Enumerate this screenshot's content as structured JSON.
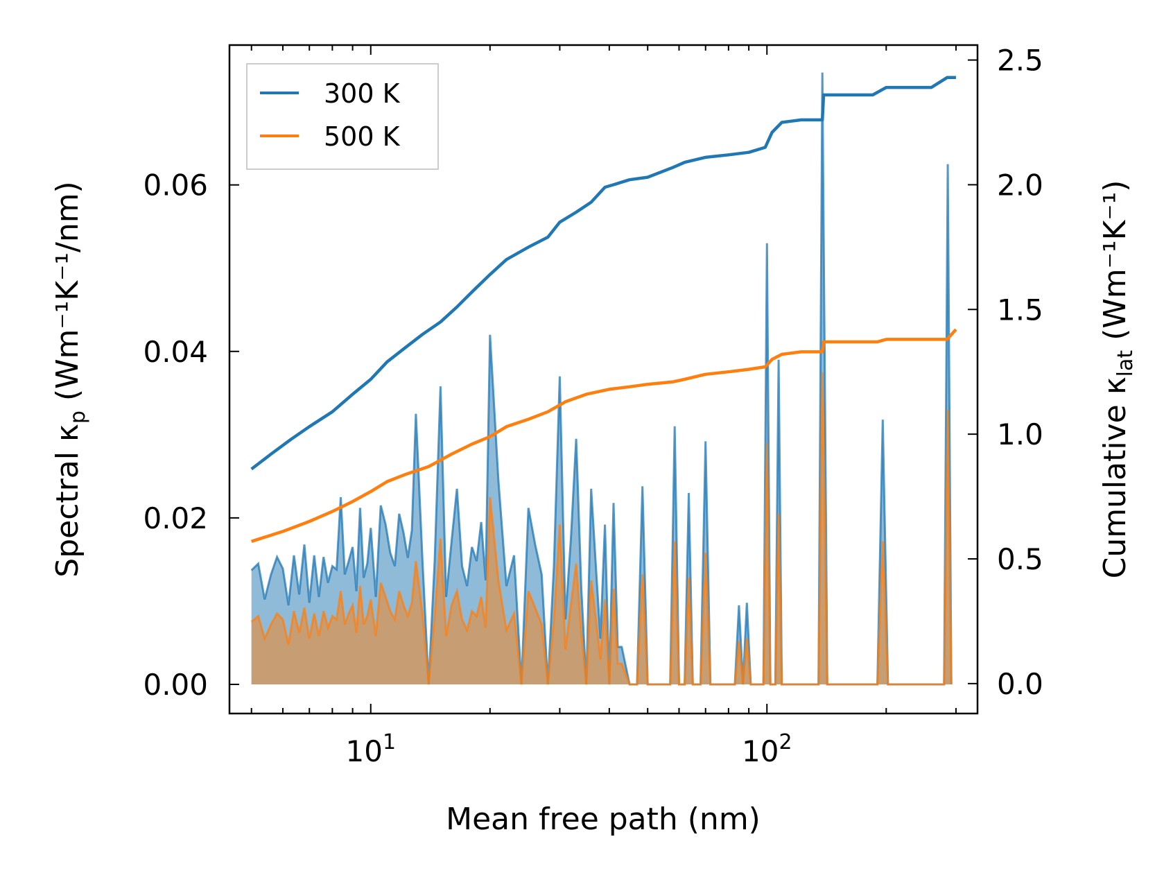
{
  "chart_data": {
    "type": "line",
    "xscale": "log",
    "xlabel": "Mean free path (nm)",
    "ylabel_left": {
      "prefix": "Spectral κ",
      "sub": "p",
      "units": " (Wm⁻¹K⁻¹/nm)"
    },
    "ylabel_right": {
      "prefix": "Cumulative κ",
      "sub": "lat",
      "units": " (Wm⁻¹K⁻¹)"
    },
    "xlim": [
      4.4,
      340
    ],
    "ylim_left": [
      -0.0035,
      0.0768
    ],
    "ylim_right": [
      -0.12,
      2.56
    ],
    "x_tick_labels": [
      {
        "value": 10,
        "base": "10",
        "exp": "1"
      },
      {
        "value": 100,
        "base": "10",
        "exp": "2"
      }
    ],
    "y_left_ticks": [
      0.0,
      0.02,
      0.04,
      0.06
    ],
    "y_left_tick_labels": [
      "0.00",
      "0.02",
      "0.04",
      "0.06"
    ],
    "y_right_ticks": [
      0.0,
      0.5,
      1.0,
      1.5,
      2.0,
      2.5
    ],
    "y_right_tick_labels": [
      "0.0",
      "0.5",
      "1.0",
      "1.5",
      "2.0",
      "2.5"
    ],
    "legend": {
      "position": "top-left",
      "entries": [
        {
          "label": "300 K",
          "color": "#1f77b4"
        },
        {
          "label": "500 K",
          "color": "#ff7f0e"
        }
      ]
    },
    "series": [
      {
        "name": "300 K",
        "axis": "right",
        "kind": "cumulative",
        "color": "#1f77b4",
        "x": [
          5.0,
          5.6,
          6.3,
          7.0,
          8.0,
          9.0,
          10.0,
          11.0,
          12.3,
          13.5,
          15.0,
          16.5,
          18.0,
          20.0,
          22.0,
          25.0,
          28.0,
          30.0,
          33.0,
          36.0,
          39.0,
          41.0,
          45.0,
          50.0,
          58.0,
          62.0,
          70.0,
          80.0,
          90.0,
          99.0,
          103.0,
          109.0,
          122.0,
          138.0,
          139.0,
          155.0,
          185.0,
          200.0,
          260.0,
          285.0,
          300.0
        ],
        "y": [
          0.86,
          0.92,
          0.98,
          1.03,
          1.09,
          1.16,
          1.22,
          1.29,
          1.35,
          1.4,
          1.45,
          1.51,
          1.57,
          1.64,
          1.7,
          1.75,
          1.79,
          1.85,
          1.89,
          1.93,
          1.99,
          2.0,
          2.02,
          2.03,
          2.07,
          2.09,
          2.11,
          2.12,
          2.13,
          2.15,
          2.21,
          2.25,
          2.26,
          2.26,
          2.36,
          2.36,
          2.36,
          2.39,
          2.39,
          2.43,
          2.43
        ]
      },
      {
        "name": "500 K",
        "axis": "right",
        "kind": "cumulative",
        "color": "#ff7f0e",
        "x": [
          5.0,
          6.0,
          7.0,
          8.0,
          9.0,
          10.0,
          11.0,
          12.3,
          14.0,
          16.0,
          18.0,
          20.0,
          22.0,
          25.0,
          28.0,
          31.0,
          35.0,
          40.0,
          45.0,
          50.0,
          58.0,
          62.0,
          70.0,
          80.0,
          90.0,
          99.0,
          103.0,
          109.0,
          122.0,
          138.0,
          139.0,
          190.0,
          200.0,
          285.0,
          300.0
        ],
        "y": [
          0.57,
          0.61,
          0.65,
          0.69,
          0.73,
          0.77,
          0.81,
          0.84,
          0.87,
          0.92,
          0.96,
          0.99,
          1.03,
          1.06,
          1.09,
          1.13,
          1.16,
          1.18,
          1.19,
          1.2,
          1.21,
          1.22,
          1.24,
          1.25,
          1.26,
          1.27,
          1.3,
          1.32,
          1.33,
          1.33,
          1.37,
          1.37,
          1.38,
          1.38,
          1.42
        ]
      },
      {
        "name": "300 K spectral",
        "axis": "left",
        "kind": "spectral",
        "color": "#1f77b4",
        "x": [
          5.0,
          5.2,
          5.4,
          5.6,
          5.8,
          6.0,
          6.2,
          6.4,
          6.6,
          6.8,
          7.0,
          7.2,
          7.4,
          7.6,
          7.8,
          8.0,
          8.2,
          8.4,
          8.6,
          8.8,
          9.0,
          9.2,
          9.4,
          9.6,
          9.8,
          10.0,
          10.3,
          10.6,
          10.9,
          11.2,
          11.5,
          11.8,
          12.1,
          12.4,
          12.7,
          13.0,
          13.5,
          14.0,
          14.5,
          15.0,
          15.5,
          16.0,
          16.5,
          17.0,
          17.5,
          18.0,
          18.5,
          19.0,
          19.5,
          20.0,
          21.0,
          22.0,
          23.0,
          24.0,
          25.0,
          26.0,
          27.0,
          28.0,
          29.0,
          30.0,
          31.0,
          32.0,
          33.0,
          34.0,
          35.0,
          36.0,
          37.0,
          38.0,
          39.0,
          40.0,
          41.0,
          42.0,
          43.0,
          45.0,
          47.0,
          48.5,
          50.0,
          55.0,
          57.0,
          58.5,
          60.0,
          62.0,
          63.5,
          65.0,
          68.0,
          70.0,
          72.0,
          80.0,
          83.0,
          85.0,
          87.0,
          89.0,
          91.0,
          96.0,
          98.0,
          100.0,
          102.0,
          105.0,
          107.0,
          109.0,
          112.0,
          130.0,
          135.0,
          138.0,
          142.0,
          180.0,
          190.0,
          196.0,
          202.0,
          270.0,
          280.0,
          286.0,
          292.0
        ],
        "y": [
          0.0137,
          0.0145,
          0.0102,
          0.0132,
          0.0153,
          0.0139,
          0.0095,
          0.0155,
          0.0108,
          0.0168,
          0.0098,
          0.0155,
          0.0105,
          0.0153,
          0.0122,
          0.0142,
          0.0138,
          0.0225,
          0.0132,
          0.0148,
          0.0165,
          0.0112,
          0.0212,
          0.0128,
          0.0145,
          0.0188,
          0.0105,
          0.0215,
          0.0192,
          0.0158,
          0.0142,
          0.0205,
          0.0182,
          0.0152,
          0.0185,
          0.0325,
          0.015,
          0.0,
          0.0148,
          0.0358,
          0.0105,
          0.0172,
          0.0235,
          0.0142,
          0.0118,
          0.0165,
          0.0148,
          0.0195,
          0.0125,
          0.042,
          0.0245,
          0.0118,
          0.0155,
          0.0,
          0.0212,
          0.0168,
          0.0132,
          0.0,
          0.0142,
          0.037,
          0.0078,
          0.0175,
          0.0295,
          0.0115,
          0.0,
          0.0235,
          0.0142,
          0.0055,
          0.0192,
          0.0,
          0.0218,
          0.0045,
          0.0045,
          0.0,
          0.0,
          0.0238,
          0.0,
          0.0,
          0.0,
          0.031,
          0.0,
          0.0,
          0.023,
          0.0,
          0.0,
          0.0292,
          0.0,
          0.0,
          0.0,
          0.0095,
          0.0,
          0.0098,
          0.0,
          0.0,
          0.0,
          0.053,
          0.0,
          0.0,
          0.039,
          0.0,
          0.0,
          0.0,
          0.0,
          0.0735,
          0.0,
          0.0,
          0.0,
          0.0318,
          0.0,
          0.0,
          0.0,
          0.0625,
          0.0
        ]
      },
      {
        "name": "500 K spectral",
        "axis": "left",
        "kind": "spectral",
        "color": "#ff7f0e",
        "x": [
          5.0,
          5.2,
          5.4,
          5.6,
          5.8,
          6.0,
          6.2,
          6.4,
          6.6,
          6.8,
          7.0,
          7.2,
          7.4,
          7.6,
          7.8,
          8.0,
          8.2,
          8.4,
          8.6,
          8.8,
          9.0,
          9.2,
          9.4,
          9.6,
          9.8,
          10.0,
          10.3,
          10.6,
          10.9,
          11.2,
          11.5,
          11.8,
          12.1,
          12.4,
          12.7,
          13.0,
          13.5,
          14.0,
          14.5,
          15.0,
          15.5,
          16.0,
          16.5,
          17.0,
          17.5,
          18.0,
          18.5,
          19.0,
          19.5,
          20.0,
          21.0,
          22.0,
          23.0,
          24.0,
          25.0,
          26.0,
          27.0,
          28.0,
          29.0,
          30.0,
          31.0,
          32.0,
          33.0,
          34.0,
          35.0,
          36.0,
          37.0,
          38.0,
          39.0,
          40.0,
          41.0,
          42.0,
          43.0,
          45.0,
          47.0,
          48.5,
          50.0,
          55.0,
          57.0,
          58.5,
          60.0,
          62.0,
          63.5,
          65.0,
          68.0,
          70.0,
          72.0,
          80.0,
          83.0,
          85.0,
          87.0,
          89.0,
          91.0,
          96.0,
          98.0,
          100.0,
          102.0,
          105.0,
          107.0,
          109.0,
          112.0,
          130.0,
          135.0,
          138.0,
          142.0,
          180.0,
          190.0,
          196.0,
          202.0,
          270.0,
          280.0,
          286.0,
          292.0
        ],
        "y": [
          0.0075,
          0.0082,
          0.0055,
          0.0072,
          0.0085,
          0.0078,
          0.0048,
          0.0088,
          0.0062,
          0.0092,
          0.0055,
          0.0085,
          0.0058,
          0.0088,
          0.0068,
          0.0082,
          0.0078,
          0.0112,
          0.0072,
          0.0085,
          0.0095,
          0.0062,
          0.0118,
          0.0072,
          0.0082,
          0.0102,
          0.0058,
          0.0122,
          0.0105,
          0.0088,
          0.0078,
          0.0112,
          0.0095,
          0.0082,
          0.0098,
          0.0148,
          0.0085,
          0.0,
          0.0082,
          0.0175,
          0.0058,
          0.0095,
          0.0112,
          0.0078,
          0.0065,
          0.0088,
          0.0082,
          0.0105,
          0.0068,
          0.0225,
          0.0125,
          0.0065,
          0.0085,
          0.0,
          0.0112,
          0.0092,
          0.0072,
          0.0,
          0.0078,
          0.0192,
          0.0042,
          0.0095,
          0.0145,
          0.0062,
          0.0,
          0.0125,
          0.0078,
          0.003,
          0.0102,
          0.0,
          0.0115,
          0.0025,
          0.0025,
          0.0,
          0.0,
          0.0132,
          0.0,
          0.0,
          0.0,
          0.0172,
          0.0,
          0.0,
          0.0128,
          0.0,
          0.0,
          0.0158,
          0.0,
          0.0,
          0.0,
          0.0052,
          0.0,
          0.0055,
          0.0,
          0.0,
          0.0,
          0.029,
          0.0,
          0.0,
          0.0205,
          0.0,
          0.0,
          0.0,
          0.0,
          0.0375,
          0.0,
          0.0,
          0.0,
          0.0172,
          0.0,
          0.0,
          0.0,
          0.033,
          0.0
        ]
      }
    ]
  }
}
